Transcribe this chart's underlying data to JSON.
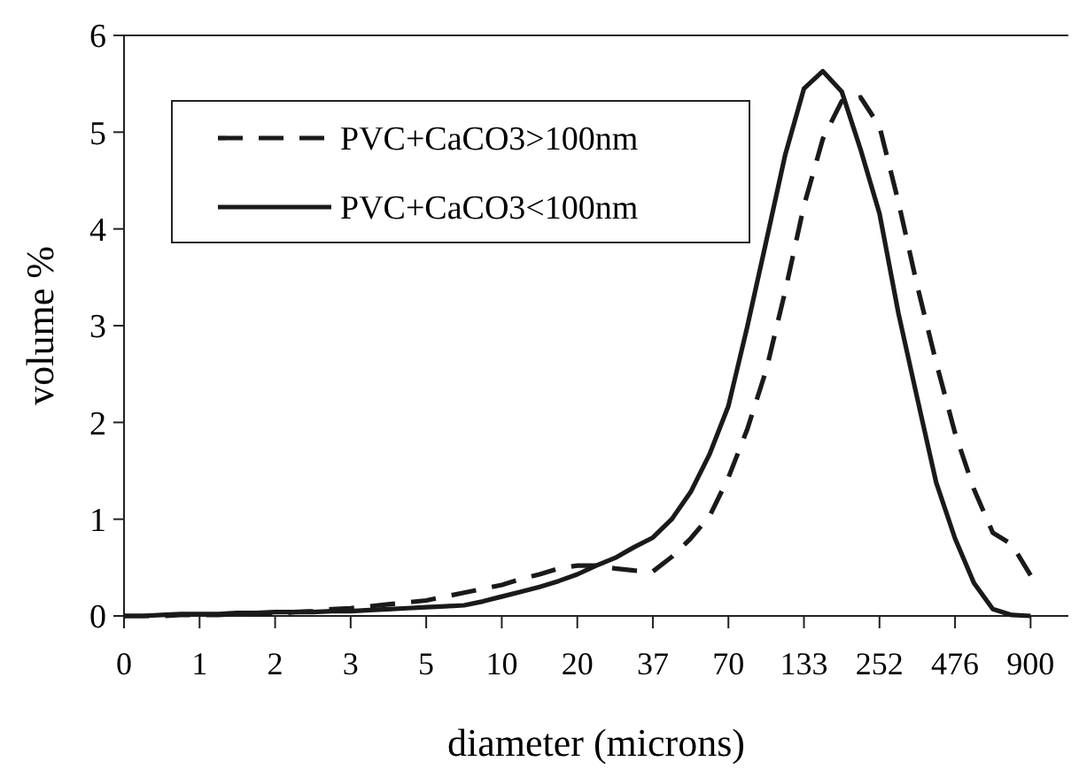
{
  "chart_data": {
    "type": "line",
    "xlabel": "diameter (microns)",
    "ylabel": "volume %",
    "categories": [
      "0",
      null,
      null,
      null,
      "1",
      null,
      null,
      null,
      "2",
      null,
      null,
      null,
      "3",
      null,
      null,
      null,
      "5",
      null,
      null,
      null,
      "10",
      null,
      null,
      null,
      "20",
      null,
      null,
      null,
      "37",
      null,
      null,
      null,
      "70",
      null,
      null,
      null,
      "133",
      null,
      null,
      null,
      "252",
      null,
      null,
      null,
      "476",
      null,
      null,
      null,
      "900",
      null,
      null
    ],
    "ylim": [
      0,
      6
    ],
    "yticks": [
      0,
      1,
      2,
      3,
      4,
      5,
      6
    ],
    "grid": false,
    "legend": "top left",
    "marker": "none",
    "series": [
      {
        "name": "PVC+CaCO3>100nm",
        "color": "#1a1a1a",
        "line_style": "dashed",
        "values": [
          0,
          0,
          0,
          0.01,
          0.01,
          0.01,
          0.02,
          0.02,
          0.02,
          0.04,
          0.05,
          0.07,
          0.08,
          0.1,
          0.12,
          0.14,
          0.16,
          0.2,
          0.24,
          0.28,
          0.32,
          0.38,
          0.43,
          0.49,
          0.52,
          0.52,
          0.49,
          0.47,
          0.46,
          0.61,
          0.8,
          1.03,
          1.43,
          1.93,
          2.54,
          3.35,
          4.24,
          4.93,
          5.32,
          5.36,
          5.06,
          4.28,
          3.41,
          2.62,
          1.89,
          1.31,
          0.86,
          0.74,
          0.42,
          null,
          null
        ]
      },
      {
        "name": "PVC+CaCO3<100nm",
        "color": "#1a1a1a",
        "line_style": "solid",
        "values": [
          0,
          0,
          0.01,
          0.02,
          0.02,
          0.02,
          0.03,
          0.03,
          0.04,
          0.04,
          0.04,
          0.05,
          0.05,
          0.06,
          0.07,
          0.08,
          0.09,
          0.1,
          0.11,
          0.15,
          0.2,
          0.25,
          0.3,
          0.36,
          0.43,
          0.52,
          0.6,
          0.71,
          0.81,
          1.0,
          1.28,
          1.67,
          2.17,
          2.99,
          3.87,
          4.76,
          5.45,
          5.63,
          5.42,
          4.82,
          4.16,
          3.13,
          2.25,
          1.38,
          0.8,
          0.34,
          0.07,
          0.01,
          0,
          null,
          null
        ]
      }
    ]
  }
}
